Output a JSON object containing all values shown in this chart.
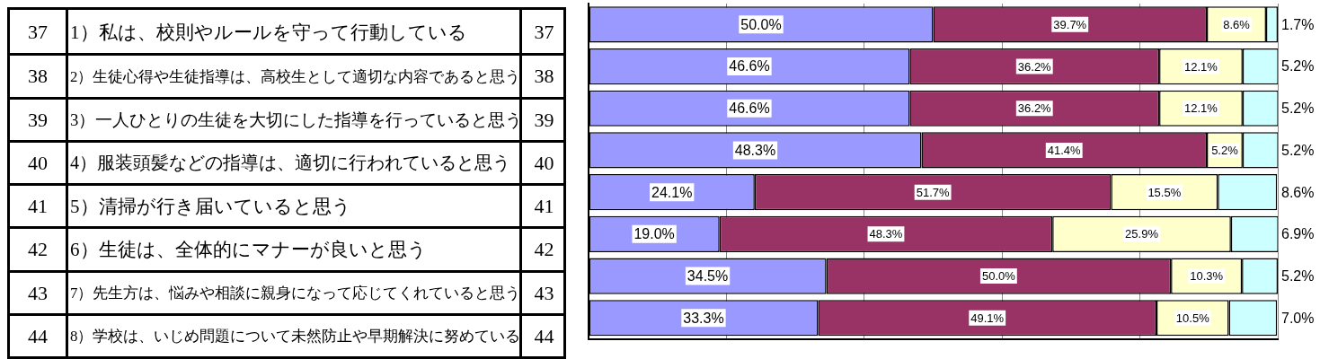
{
  "chart_data": {
    "type": "bar",
    "orientation": "horizontal",
    "stacked": true,
    "categories": [
      "1）私は、校則やルールを守って行動している",
      "2）生徒心得や生徒指導は、高校生として適切な内容であると思う",
      "3）一人ひとりの生徒を大切にした指導を行っていると思う",
      "4）服装頭髪などの指導は、適切に行われていると思う",
      "5）清掃が行き届いていると思う",
      "6）生徒は、全体的にマナーが良いと思う",
      "7）先生方は、悩みや相談に親身になって応じてくれていると思う",
      "8）学校は、いじめ問題について未然防止や早期解決に努めている"
    ],
    "series": [
      {
        "color": "#9999ff",
        "values": [
          50.0,
          46.6,
          46.6,
          48.3,
          24.1,
          19.0,
          34.5,
          33.3
        ],
        "value_labels": [
          "50.0%",
          "46.6%",
          "46.6%",
          "48.3%",
          "24.1%",
          "19.0%",
          "34.5%",
          "33.3%"
        ]
      },
      {
        "color": "#993366",
        "values": [
          39.7,
          36.2,
          36.2,
          41.4,
          51.7,
          48.3,
          50.0,
          49.1
        ],
        "value_labels": [
          "39.7%",
          "36.2%",
          "36.2%",
          "41.4%",
          "51.7%",
          "48.3%",
          "50.0%",
          "49.1%"
        ]
      },
      {
        "color": "#ffffcc",
        "values": [
          8.6,
          12.1,
          12.1,
          5.2,
          15.5,
          25.9,
          10.3,
          10.5
        ],
        "value_labels": [
          "8.6%",
          "12.1%",
          "12.1%",
          "5.2%",
          "15.5%",
          "25.9%",
          "10.3%",
          "10.5%"
        ]
      },
      {
        "color": "#ccffff",
        "values": [
          1.7,
          5.2,
          5.2,
          5.2,
          8.6,
          6.9,
          5.2,
          7.0
        ],
        "value_labels": [
          "1.7%",
          "5.2%",
          "5.2%",
          "5.2%",
          "8.6%",
          "6.9%",
          "5.2%",
          "7.0%"
        ]
      }
    ],
    "xlim": [
      0,
      100
    ],
    "xticks": [
      {
        "value": 0,
        "label": null
      },
      {
        "value": 20,
        "label": null
      },
      {
        "value": 40,
        "label": null
      },
      {
        "value": 60,
        "label": null
      },
      {
        "value": 80,
        "label": null
      },
      {
        "value": 100,
        "label": null
      }
    ],
    "grid": "x",
    "legend": false,
    "annotations": [
      "37",
      "38",
      "39",
      "40",
      "41",
      "42",
      "43",
      "44",
      "37",
      "38",
      "39",
      "40",
      "41",
      "42",
      "43",
      "44"
    ]
  }
}
